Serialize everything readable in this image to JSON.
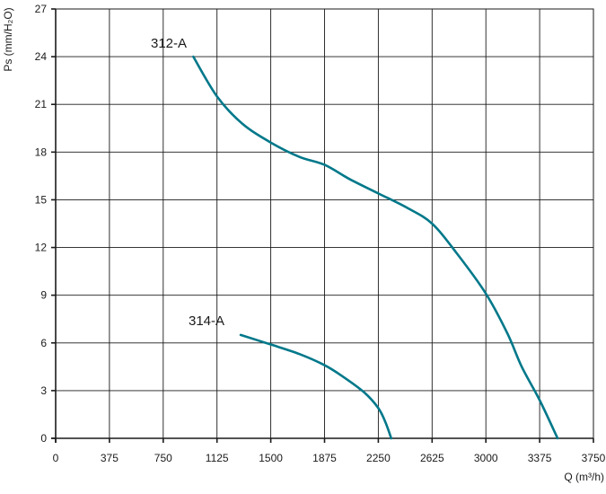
{
  "chart_data": {
    "type": "line",
    "title": "",
    "xlabel": "Q (m³/h)",
    "ylabel": "Ps (mm/H₂O)",
    "xlim": [
      0,
      3750
    ],
    "ylim": [
      0,
      27
    ],
    "x_ticks": [
      "0",
      "375",
      "750",
      "1125",
      "1500",
      "1875",
      "2250",
      "2625",
      "3000",
      "3375",
      "3750"
    ],
    "y_ticks": [
      "0",
      "3",
      "6",
      "9",
      "12",
      "15",
      "18",
      "21",
      "24",
      "27"
    ],
    "grid": true,
    "series_color": "#00788a",
    "series": [
      {
        "name": "312-A",
        "x": [
          960,
          1125,
          1300,
          1500,
          1700,
          1875,
          2050,
          2250,
          2450,
          2625,
          2800,
          3000,
          3150,
          3250,
          3375,
          3500
        ],
        "y": [
          24,
          21.5,
          19.8,
          18.6,
          17.7,
          17.2,
          16.3,
          15.4,
          14.5,
          13.5,
          11.6,
          9.1,
          6.6,
          4.5,
          2.4,
          0
        ]
      },
      {
        "name": "314-A",
        "x": [
          1290,
          1500,
          1700,
          1875,
          2000,
          2150,
          2250,
          2300,
          2340
        ],
        "y": [
          6.5,
          5.9,
          5.3,
          4.6,
          3.9,
          2.9,
          1.9,
          1.0,
          0
        ]
      }
    ]
  }
}
